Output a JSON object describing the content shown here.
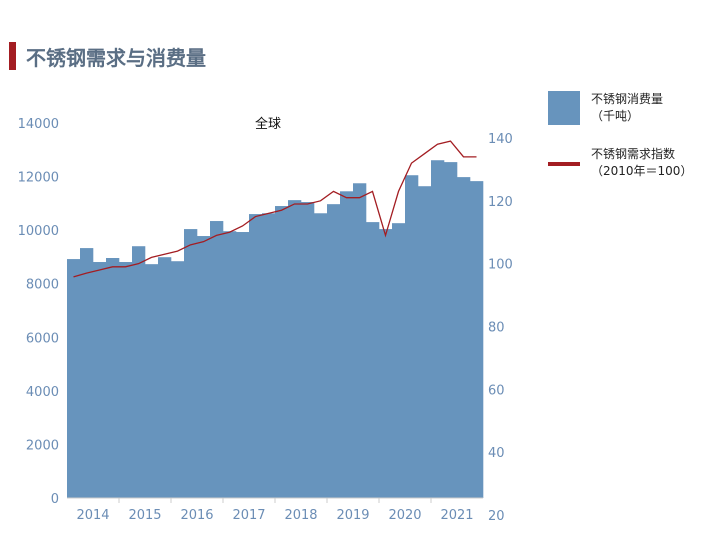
{
  "page_title": "不锈钢需求与消费量",
  "chart_data": {
    "type": "bar+line",
    "title": "全球",
    "x_tick_labels": [
      "2014",
      "2015",
      "2016",
      "2017",
      "2018",
      "2019",
      "2020",
      "2021"
    ],
    "quarters_per_year": 4,
    "left_axis": {
      "ylim": [
        0,
        14000
      ],
      "ticks": [
        "0",
        "2000",
        "4000",
        "6000",
        "8000",
        "10000",
        "12000",
        "14000"
      ]
    },
    "right_axis": {
      "ylim": [
        20,
        140
      ],
      "ticks": [
        "20",
        "40",
        "60",
        "80",
        "100",
        "120",
        "140"
      ]
    },
    "series": [
      {
        "name": "不锈钢消费量",
        "name_line2": "（千吨）",
        "type": "bar",
        "axis": "left",
        "color": "#6794bd",
        "values": [
          8920,
          9330,
          8810,
          8960,
          8810,
          9400,
          8730,
          8990,
          8840,
          10040,
          9780,
          10340,
          9960,
          9930,
          10600,
          10630,
          10900,
          11120,
          11050,
          10630,
          10970,
          11450,
          11750,
          10300,
          10040,
          10260,
          12050,
          11640,
          12610,
          12540,
          11980,
          11830
        ]
      },
      {
        "name": "不锈钢需求指数",
        "name_line2": "（2010年＝100）",
        "type": "line",
        "axis": "right",
        "color": "#a31d22",
        "values": [
          95.8,
          97,
          98,
          99,
          99,
          100,
          102,
          103,
          104,
          106,
          107,
          109,
          110,
          112,
          115,
          116,
          117,
          119,
          119,
          120,
          123,
          121,
          121,
          123,
          109,
          123,
          132,
          135,
          138,
          139,
          134,
          134
        ]
      }
    ]
  }
}
